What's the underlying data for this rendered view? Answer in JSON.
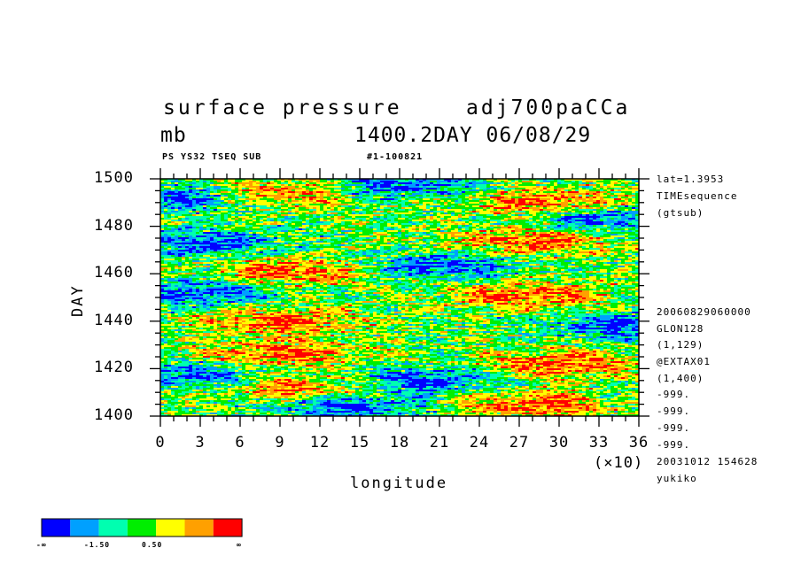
{
  "header": {
    "title_left": "surface pressure",
    "title_right": "adj700paCCa",
    "units": "mb",
    "subtitle_right": "1400.2DAY 06/08/29",
    "tag_left": "PS YS32 TSEQ SUB",
    "tag_right": "#1-100821"
  },
  "sidebar": {
    "top": [
      "lat=1.3953",
      "TIMEsequence",
      "(gtsub)"
    ],
    "bottom": [
      "20060829060000",
      "GLON128",
      "(1,129)",
      "@EXTAX01",
      "(1,400)",
      "-999.",
      "-999.",
      "-999.",
      "-999.",
      "20031012 154628",
      "yukiko"
    ]
  },
  "chart_data": {
    "type": "heatmap",
    "xlabel": "longitude",
    "ylabel": "DAY",
    "x_multiplier_label": "(×10)",
    "xlim": [
      0,
      36
    ],
    "ylim": [
      1400,
      1500
    ],
    "x_ticks": [
      0,
      3,
      6,
      9,
      12,
      15,
      18,
      21,
      24,
      27,
      30,
      33,
      36
    ],
    "y_ticks": [
      1400,
      1420,
      1440,
      1460,
      1480,
      1500
    ],
    "colorbar": {
      "colors": [
        "#0000ff",
        "#00a0ff",
        "#00ffb0",
        "#00ee00",
        "#ffff00",
        "#ffa000",
        "#ff0000"
      ],
      "labels": [
        "-∞",
        "-1.50",
        "0.50",
        "∞"
      ]
    },
    "features": [
      {
        "x": 10,
        "day": 1461,
        "level": "high"
      },
      {
        "x": 10,
        "day": 1412,
        "level": "high"
      },
      {
        "x": 28,
        "day": 1405,
        "level": "high"
      },
      {
        "x": 27.5,
        "day": 1451,
        "level": "high"
      },
      {
        "x": 28,
        "day": 1474,
        "level": "high"
      },
      {
        "x": 9,
        "day": 1440,
        "level": "high"
      },
      {
        "x": 9,
        "day": 1426,
        "level": "high"
      },
      {
        "x": 9,
        "day": 1494,
        "level": "high"
      },
      {
        "x": 29,
        "day": 1490,
        "level": "high"
      },
      {
        "x": 30,
        "day": 1422,
        "level": "high"
      },
      {
        "x": 3,
        "day": 1473,
        "level": "low"
      },
      {
        "x": 3,
        "day": 1452,
        "level": "low"
      },
      {
        "x": 3,
        "day": 1417,
        "level": "low"
      },
      {
        "x": 2,
        "day": 1492,
        "level": "low"
      },
      {
        "x": 21,
        "day": 1463,
        "level": "low"
      },
      {
        "x": 20,
        "day": 1415,
        "level": "low"
      },
      {
        "x": 18,
        "day": 1497,
        "level": "low"
      },
      {
        "x": 35,
        "day": 1438,
        "level": "low"
      },
      {
        "x": 33,
        "day": 1483,
        "level": "low"
      },
      {
        "x": 14,
        "day": 1404,
        "level": "low"
      }
    ]
  }
}
